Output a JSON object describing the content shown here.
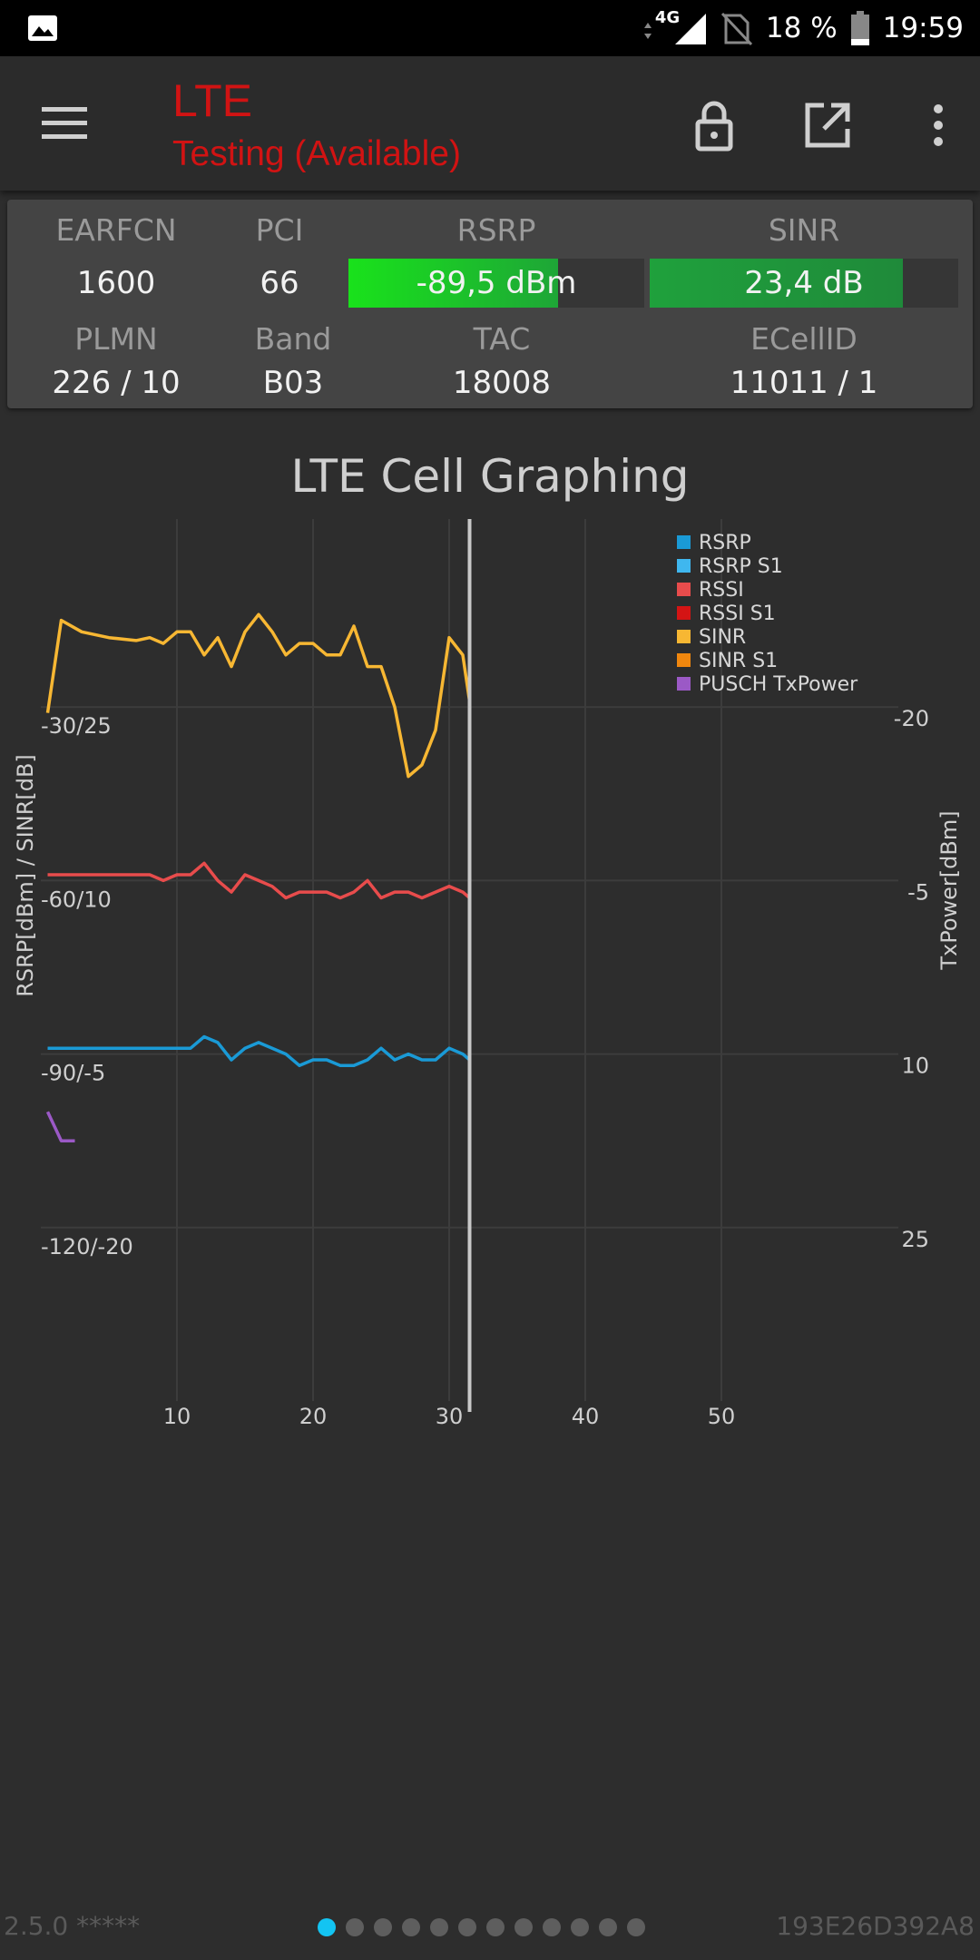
{
  "status_bar": {
    "network": "4G",
    "battery": "18 %",
    "time": "19:59"
  },
  "app_bar": {
    "title": "LTE",
    "subtitle": "Testing (Available)"
  },
  "cell_info": {
    "earfcn_label": "EARFCN",
    "earfcn": "1600",
    "pci_label": "PCI",
    "pci": "66",
    "rsrp_label": "RSRP",
    "rsrp": "-89,5 dBm",
    "rsrp_level": 0.71,
    "sinr_label": "SINR",
    "sinr": "23,4 dB",
    "sinr_level": 0.82,
    "plmn_label": "PLMN",
    "plmn": "226 / 10",
    "band_label": "Band",
    "band": "B03",
    "tac_label": "TAC",
    "tac": "18008",
    "ecellid_label": "ECellID",
    "ecellid": "11011 / 1"
  },
  "chart_data": {
    "type": "line",
    "title": "LTE Cell Graphing",
    "ylabel": "RSRP[dBm] / SINR[dB]",
    "y2label": "TxPower[dBm]",
    "x_ticks": [
      "10",
      "20",
      "30",
      "40",
      "50"
    ],
    "y_ticks": [
      "-30/25",
      "-60/10",
      "-90/-5",
      "-120/-20"
    ],
    "y2_ticks": [
      "-20",
      "-5",
      "10",
      "25"
    ],
    "xlim": [
      0,
      63
    ],
    "ylim": [
      -150,
      0
    ],
    "cursor_x": 31.5,
    "legend_position": "top-right",
    "legend": [
      {
        "name": "RSRP",
        "color": "#1a9ad6"
      },
      {
        "name": "RSRP S1",
        "color": "#3fb7ef"
      },
      {
        "name": "RSSI",
        "color": "#e84c4c"
      },
      {
        "name": "RSSI S1",
        "color": "#d41414"
      },
      {
        "name": "SINR",
        "color": "#f7b733"
      },
      {
        "name": "SINR S1",
        "color": "#f0870e"
      },
      {
        "name": "PUSCH TxPower",
        "color": "#9b59c6"
      }
    ],
    "series": [
      {
        "name": "SINR",
        "color": "#f7b733",
        "x": [
          0.5,
          1.5,
          3,
          5,
          7,
          8,
          9,
          10,
          11,
          12,
          13,
          14,
          15,
          16,
          17,
          18,
          19,
          20,
          21,
          22,
          23,
          24,
          25,
          26,
          27,
          28,
          29,
          30,
          31,
          31.5
        ],
        "values": [
          -31,
          -15,
          -17,
          -18,
          -18.5,
          -18,
          -19,
          -17,
          -17,
          -21,
          -18,
          -23,
          -17,
          -14,
          -17,
          -21,
          -19,
          -19,
          -21,
          -21,
          -16,
          -23,
          -23,
          -30,
          -42,
          -40,
          -34,
          -18,
          -21,
          -29
        ]
      },
      {
        "name": "RSSI",
        "color": "#e84c4c",
        "x": [
          0.5,
          2,
          4,
          6,
          8,
          9,
          10,
          11,
          12,
          13,
          14,
          15,
          16,
          17,
          18,
          19,
          20,
          21,
          22,
          23,
          24,
          25,
          26,
          27,
          28,
          29,
          30,
          31,
          31.5
        ],
        "values": [
          -59,
          -59,
          -59,
          -59,
          -59,
          -60,
          -59,
          -59,
          -57,
          -60,
          -62,
          -59,
          -60,
          -61,
          -63,
          -62,
          -62,
          -62,
          -63,
          -62,
          -60,
          -63,
          -62,
          -62,
          -63,
          -62,
          -61,
          -62,
          -63
        ]
      },
      {
        "name": "RSRP",
        "color": "#1a9ad6",
        "x": [
          0.5,
          2,
          4,
          6,
          8,
          10,
          11,
          12,
          13,
          14,
          15,
          16,
          17,
          18,
          19,
          20,
          21,
          22,
          23,
          24,
          25,
          26,
          27,
          28,
          29,
          30,
          31,
          31.5
        ],
        "values": [
          -89,
          -89,
          -89,
          -89,
          -89,
          -89,
          -89,
          -87,
          -88,
          -91,
          -89,
          -88,
          -89,
          -90,
          -92,
          -91,
          -91,
          -92,
          -92,
          -91,
          -89,
          -91,
          -90,
          -91,
          -91,
          -89,
          -90,
          -91
        ]
      },
      {
        "name": "PUSCH TxPower",
        "color": "#9b59c6",
        "x": [
          0.5,
          1.5,
          2.5
        ],
        "values": [
          -100,
          -105,
          -105
        ]
      }
    ]
  },
  "footer": {
    "version": "2.5.0 *****",
    "device_id": "193E26D392A8"
  },
  "pager": {
    "count": 12,
    "active": 0
  }
}
